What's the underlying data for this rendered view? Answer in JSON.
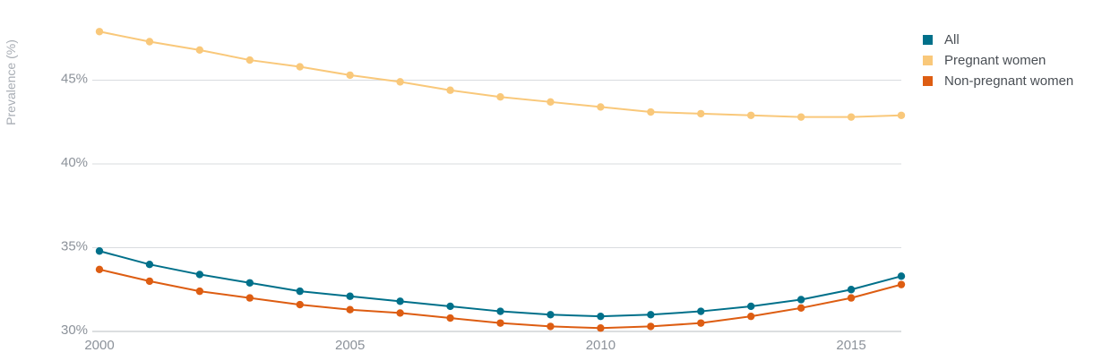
{
  "chart_data": {
    "type": "line",
    "ylabel": "Prevalence (%)",
    "xlabel": "",
    "x": [
      2000,
      2001,
      2002,
      2003,
      2004,
      2005,
      2006,
      2007,
      2008,
      2009,
      2010,
      2011,
      2012,
      2013,
      2014,
      2015,
      2016
    ],
    "xlim": [
      2000,
      2016
    ],
    "ylim": [
      30,
      48.5
    ],
    "x_ticks": [
      "2000",
      "2005",
      "2010",
      "2015"
    ],
    "y_ticks": [
      "30%",
      "35%",
      "40%",
      "45%"
    ],
    "grid": "horizontal",
    "legend_position": "top-right",
    "series": [
      {
        "name": "All",
        "color": "#00708a",
        "values": [
          34.8,
          34.0,
          33.4,
          32.9,
          32.4,
          32.1,
          31.8,
          31.5,
          31.2,
          31.0,
          30.9,
          31.0,
          31.2,
          31.5,
          31.9,
          32.5,
          33.3
        ]
      },
      {
        "name": "Pregnant women",
        "color": "#f9c87a",
        "values": [
          47.9,
          47.3,
          46.8,
          46.2,
          45.8,
          45.3,
          44.9,
          44.4,
          44.0,
          43.7,
          43.4,
          43.1,
          43.0,
          42.9,
          42.8,
          42.8,
          42.9
        ]
      },
      {
        "name": "Non-pregnant women",
        "color": "#dd5d12",
        "values": [
          33.7,
          33.0,
          32.4,
          32.0,
          31.6,
          31.3,
          31.1,
          30.8,
          30.5,
          30.3,
          30.2,
          30.3,
          30.5,
          30.9,
          31.4,
          32.0,
          32.8
        ]
      }
    ]
  }
}
